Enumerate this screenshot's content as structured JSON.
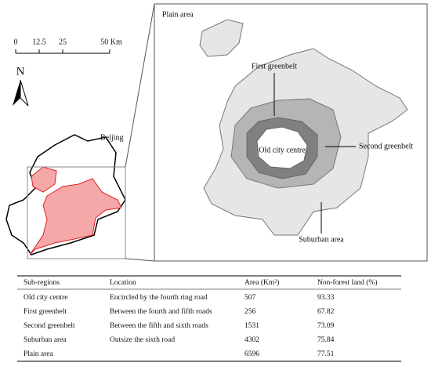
{
  "map": {
    "scale_labels": [
      "0",
      "12.5",
      "25",
      "50 Km"
    ],
    "north": "N",
    "region_label": "Beijing",
    "panel_title": "Plain area",
    "labels": {
      "first": "First greenbelt",
      "second": "Second greenbelt",
      "centre": "Old city centre",
      "suburban": "Suburban area"
    }
  },
  "table": {
    "header": [
      "Sub-regions",
      "Location",
      "Area (Km²)",
      "Non-forest land (%)"
    ],
    "rows": [
      [
        "Old city centre",
        "Encircled by the fourth ring road",
        507,
        93.33
      ],
      [
        "First greenbelt",
        "Between the fourth and fifth roads",
        256,
        67.82
      ],
      [
        "Second greenbelt",
        "Between the fifth and sixth roads",
        1531,
        73.09
      ],
      [
        "Suburban area",
        "Outsize the sixth road",
        4302,
        75.84
      ],
      [
        "Plain area",
        null,
        6596,
        77.51
      ]
    ]
  }
}
